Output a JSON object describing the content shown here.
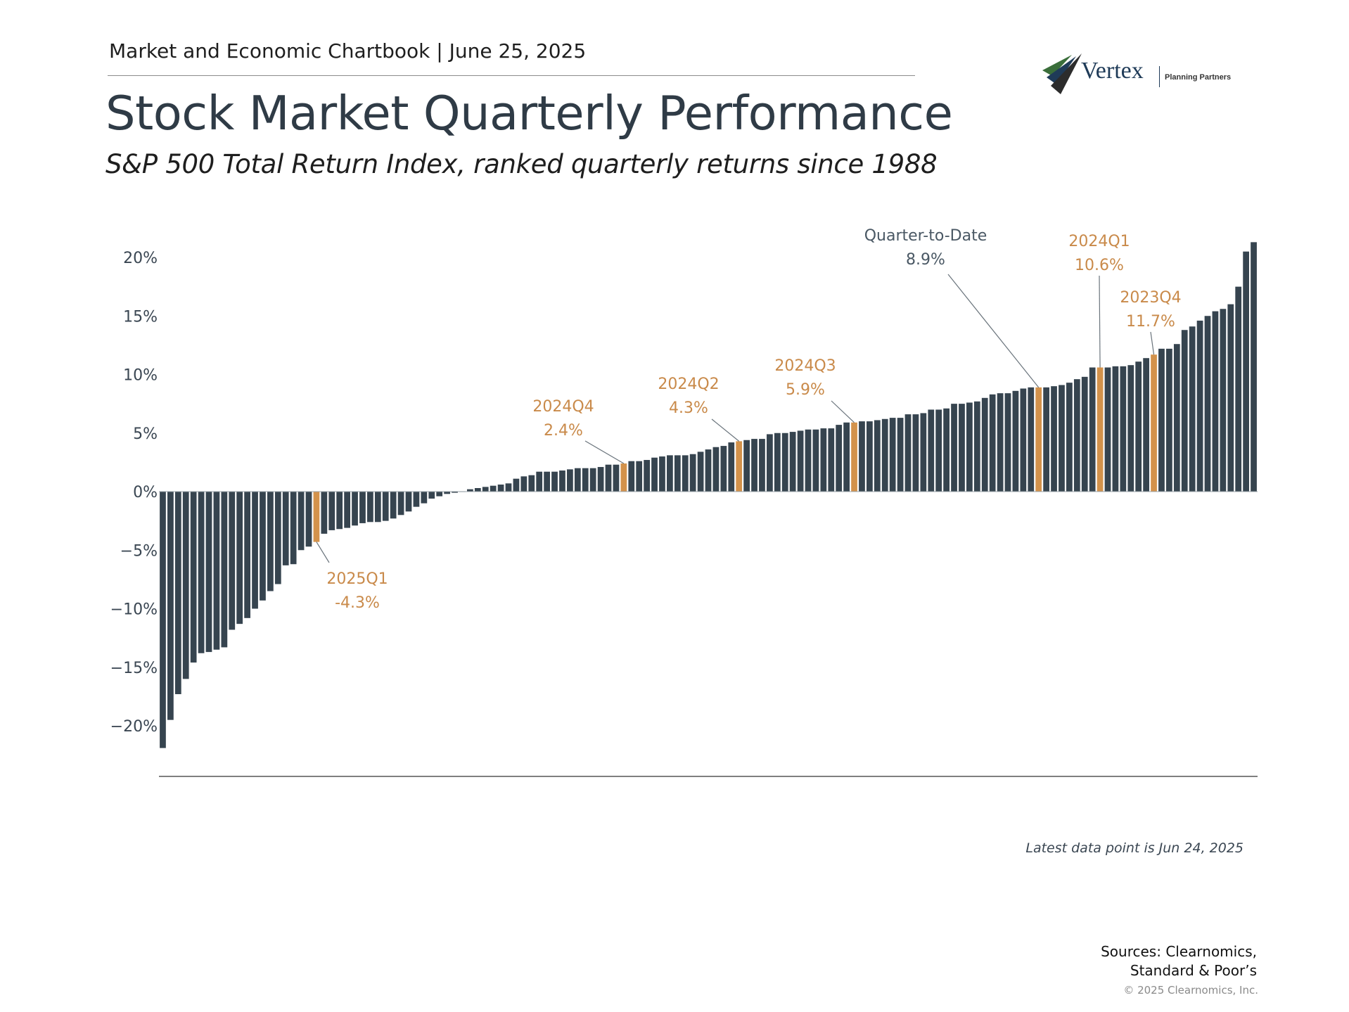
{
  "header": {
    "chartbook": "Market and Economic Chartbook | June 25, 2025",
    "title": "Stock Market Quarterly Performance",
    "subtitle": "S&P 500 Total Return Index, ranked quarterly returns since 1988"
  },
  "logo": {
    "name": "Vertex",
    "tagline": "Planning Partners",
    "colors": [
      "#3a6e3a",
      "#1f3b58",
      "#2c2c2c"
    ]
  },
  "colors": {
    "bar": "#36444f",
    "highlight": "#d3924b",
    "annotation_text_orange": "#c98a4a",
    "annotation_text_dark": "#4a5864",
    "axis_line": "#555555"
  },
  "chart_data": {
    "type": "bar",
    "sorted": "ascending",
    "y_unit": "%",
    "ylim": [
      -22,
      21.5
    ],
    "yticks": [
      20,
      15,
      10,
      5,
      0,
      -5,
      -10,
      -15,
      -20
    ],
    "ytick_labels": [
      "20%",
      "15%",
      "10%",
      "5%",
      "0%",
      "−5%",
      "−10%",
      "−15%",
      "−20%"
    ],
    "grid": false,
    "values": [
      -21.9,
      -19.5,
      -17.3,
      -16.0,
      -14.6,
      -13.8,
      -13.7,
      -13.5,
      -13.3,
      -11.8,
      -11.3,
      -10.8,
      -10.0,
      -9.3,
      -8.5,
      -7.9,
      -6.3,
      -6.2,
      -5.0,
      -4.7,
      -4.3,
      -3.6,
      -3.3,
      -3.2,
      -3.1,
      -2.9,
      -2.7,
      -2.6,
      -2.6,
      -2.5,
      -2.3,
      -2.0,
      -1.7,
      -1.3,
      -1.0,
      -0.6,
      -0.4,
      -0.2,
      -0.1,
      0.0,
      0.2,
      0.3,
      0.4,
      0.5,
      0.6,
      0.7,
      1.1,
      1.3,
      1.4,
      1.7,
      1.7,
      1.7,
      1.8,
      1.9,
      2.0,
      2.0,
      2.0,
      2.1,
      2.3,
      2.3,
      2.4,
      2.6,
      2.6,
      2.7,
      2.9,
      3.0,
      3.1,
      3.1,
      3.1,
      3.2,
      3.4,
      3.6,
      3.8,
      3.9,
      4.2,
      4.3,
      4.4,
      4.5,
      4.5,
      4.9,
      5.0,
      5.0,
      5.1,
      5.2,
      5.3,
      5.3,
      5.4,
      5.4,
      5.7,
      5.9,
      5.9,
      6.0,
      6.0,
      6.1,
      6.2,
      6.3,
      6.3,
      6.6,
      6.6,
      6.7,
      7.0,
      7.0,
      7.1,
      7.5,
      7.5,
      7.6,
      7.7,
      8.0,
      8.3,
      8.4,
      8.4,
      8.6,
      8.8,
      8.9,
      8.9,
      8.9,
      9.0,
      9.1,
      9.3,
      9.6,
      9.8,
      10.6,
      10.6,
      10.6,
      10.7,
      10.7,
      10.8,
      11.1,
      11.4,
      11.7,
      12.2,
      12.2,
      12.6,
      13.8,
      14.1,
      14.6,
      15.0,
      15.4,
      15.6,
      16.0,
      17.5,
      20.5,
      21.3
    ],
    "annotations": [
      {
        "label": "2025Q1",
        "value_text": "-4.3%",
        "value": -4.3,
        "bar_index": 20,
        "color": "orange",
        "highlight": true
      },
      {
        "label": "2024Q4",
        "value_text": "2.4%",
        "value": 2.4,
        "bar_index": 60,
        "color": "orange",
        "highlight": true
      },
      {
        "label": "2024Q2",
        "value_text": "4.3%",
        "value": 4.3,
        "bar_index": 75,
        "color": "orange",
        "highlight": true
      },
      {
        "label": "2024Q3",
        "value_text": "5.9%",
        "value": 5.9,
        "bar_index": 90,
        "color": "orange",
        "highlight": true
      },
      {
        "label": "Quarter-to-Date",
        "value_text": "8.9%",
        "value": 8.9,
        "bar_index": 114,
        "color": "dark",
        "highlight": true
      },
      {
        "label": "2024Q1",
        "value_text": "10.6%",
        "value": 10.6,
        "bar_index": 122,
        "color": "orange",
        "highlight": true
      },
      {
        "label": "2023Q4",
        "value_text": "11.7%",
        "value": 11.7,
        "bar_index": 129,
        "color": "orange",
        "highlight": true
      }
    ]
  },
  "footer": {
    "latest": "Latest data point is Jun 24, 2025",
    "sources_line1": "Sources: Clearnomics,",
    "sources_line2": "Standard & Poor’s",
    "copyright": "© 2025 Clearnomics, Inc."
  }
}
